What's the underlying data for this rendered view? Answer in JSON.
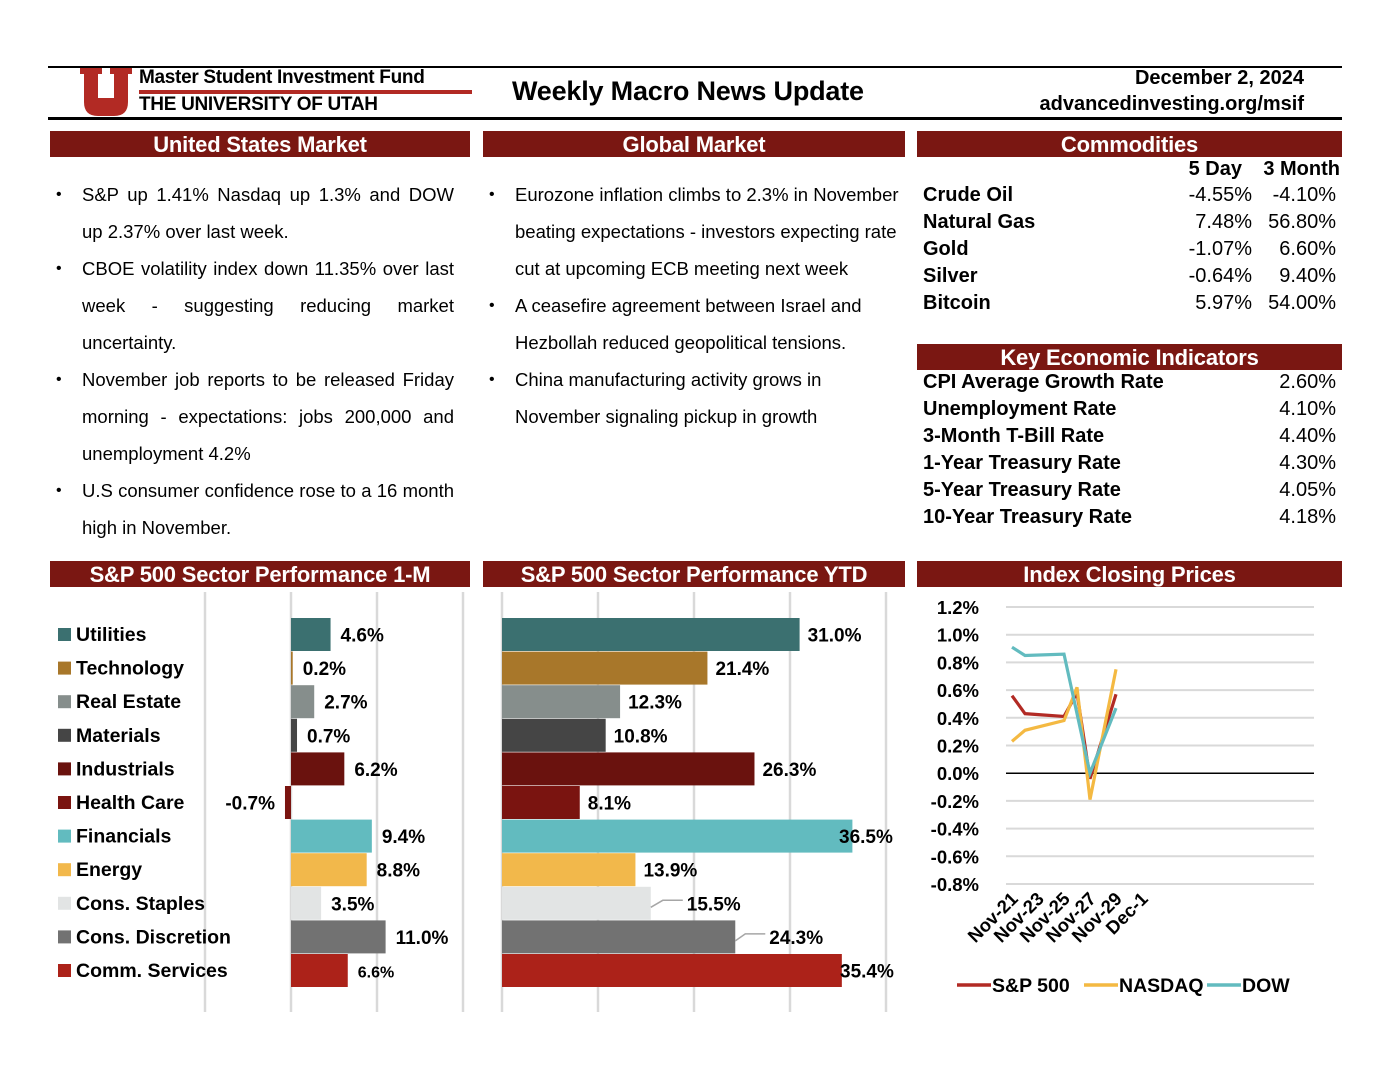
{
  "header": {
    "fund_name": "Master Student Investment Fund",
    "university": "THE UNIVERSITY OF UTAH",
    "title": "Weekly Macro News Update",
    "date": "December 2, 2024",
    "url": "advancedinvesting.org/msif",
    "logo_icon": "university-of-utah-u-logo",
    "brand_color": "#b22a24",
    "section_color": "#7a1712"
  },
  "us_market": {
    "title": "United States Market",
    "bullets": [
      "S&P up 1.41% Nasdaq up 1.3% and DOW up 2.37% over last week.",
      "CBOE volatility index down 11.35% over last week - suggesting reducing market uncertainty.",
      "November job reports to be released Friday morning - expectations: jobs 200,000 and unemployment 4.2%",
      "U.S consumer confidence rose to a 16 month high in November."
    ]
  },
  "global_market": {
    "title": "Global Market",
    "bullets": [
      "Eurozone inflation climbs to 2.3% in November beating expectations - investors expecting rate cut at upcoming ECB meeting next week",
      "A ceasefire agreement between Israel and Hezbollah reduced geopolitical tensions.",
      "China manufacturing activity grows in November signaling pickup in growth"
    ]
  },
  "commodities": {
    "title": "Commodities",
    "columns": [
      "5 Day",
      "3 Month"
    ],
    "rows": [
      {
        "name": "Crude Oil",
        "five_day": "-4.55%",
        "three_month": "-4.10%"
      },
      {
        "name": "Natural Gas",
        "five_day": "7.48%",
        "three_month": "56.80%"
      },
      {
        "name": "Gold",
        "five_day": "-1.07%",
        "three_month": "6.60%"
      },
      {
        "name": "Silver",
        "five_day": "-0.64%",
        "three_month": "9.40%"
      },
      {
        "name": "Bitcoin",
        "five_day": "5.97%",
        "three_month": "54.00%"
      }
    ]
  },
  "indicators": {
    "title": "Key Economic Indicators",
    "rows": [
      {
        "name": "CPI Average Growth Rate",
        "value": "2.60%"
      },
      {
        "name": "Unemployment Rate",
        "value": "4.10%"
      },
      {
        "name": "3-Month T-Bill Rate",
        "value": "4.40%"
      },
      {
        "name": "1-Year Treasury Rate",
        "value": "4.30%"
      },
      {
        "name": "5-Year Treasury Rate",
        "value": "4.05%"
      },
      {
        "name": "10-Year Treasury Rate",
        "value": "4.18%"
      }
    ]
  },
  "chart_data": [
    {
      "id": "sector_1m",
      "type": "bar",
      "orientation": "horizontal",
      "title": "S&P 500 Sector Performance 1-M",
      "categories": [
        "Utilities",
        "Technology",
        "Real Estate",
        "Materials",
        "Industrials",
        "Health Care",
        "Financials",
        "Energy",
        "Cons. Staples",
        "Cons. Discretion",
        "Comm. Services"
      ],
      "values": [
        4.6,
        0.2,
        2.7,
        0.7,
        6.2,
        -0.7,
        9.4,
        8.8,
        3.5,
        11.0,
        6.6
      ],
      "labels": [
        "4.6%",
        "0.2%",
        "2.7%",
        "0.7%",
        "6.2%",
        "-0.7%",
        "9.4%",
        "8.8%",
        "3.5%",
        "11.0%",
        "6.6%"
      ],
      "colors": [
        "#3b7070",
        "#a8772a",
        "#868e8c",
        "#454545",
        "#6a120e",
        "#7a1410",
        "#62bbbf",
        "#f2b84b",
        "#e2e4e4",
        "#727272",
        "#ac2219"
      ],
      "xlim": [
        -10,
        20
      ],
      "gridlines": [
        -10,
        0,
        10,
        20
      ],
      "grid": true,
      "legend": "left"
    },
    {
      "id": "sector_ytd",
      "type": "bar",
      "orientation": "horizontal",
      "title": "S&P 500 Sector Performance YTD",
      "categories": [
        "Utilities",
        "Technology",
        "Real Estate",
        "Materials",
        "Industrials",
        "Health Care",
        "Financials",
        "Energy",
        "Cons. Staples",
        "Cons. Discretion",
        "Comm. Services"
      ],
      "values": [
        31.0,
        21.4,
        12.3,
        10.8,
        26.3,
        8.1,
        36.5,
        13.9,
        15.5,
        24.3,
        35.4
      ],
      "labels": [
        "31.0%",
        "21.4%",
        "12.3%",
        "10.8%",
        "26.3%",
        "8.1%",
        "36.5%",
        "13.9%",
        "15.5%",
        "24.3%",
        "35.4%"
      ],
      "colors": [
        "#3b7070",
        "#a8772a",
        "#868e8c",
        "#454545",
        "#6a120e",
        "#7a1410",
        "#62bbbf",
        "#f2b84b",
        "#e2e4e4",
        "#727272",
        "#ac2219"
      ],
      "xlim": [
        0,
        40
      ],
      "gridlines": [
        0,
        10,
        20,
        30,
        40
      ],
      "grid": true
    },
    {
      "id": "index_closing",
      "type": "line",
      "title": "Index Closing Prices",
      "x": [
        "Nov-21",
        "Nov-22",
        "Nov-25",
        "Nov-26",
        "Nov-27",
        "Nov-29"
      ],
      "x_day_offsets": [
        0,
        1,
        4,
        5,
        6,
        8
      ],
      "x_ticks": [
        "Nov-21",
        "Nov-23",
        "Nov-25",
        "Nov-27",
        "Nov-29",
        "Dec-1"
      ],
      "x_tick_offsets": [
        0,
        2,
        4,
        6,
        8,
        10
      ],
      "series": [
        {
          "name": "S&P 500",
          "color": "#b22a24",
          "values": [
            0.56,
            0.43,
            0.41,
            0.58,
            -0.04,
            0.57
          ]
        },
        {
          "name": "NASDAQ",
          "color": "#f4b942",
          "values": [
            0.23,
            0.31,
            0.38,
            0.62,
            -0.19,
            0.75
          ]
        },
        {
          "name": "DOW",
          "color": "#62bbbf",
          "values": [
            0.91,
            0.85,
            0.86,
            null,
            0.0,
            0.47
          ]
        }
      ],
      "y_ticks": [
        "1.2%",
        "1.0%",
        "0.8%",
        "0.6%",
        "0.4%",
        "0.2%",
        "0.0%",
        "-0.2%",
        "-0.4%",
        "-0.6%",
        "-0.8%"
      ],
      "y_tick_values": [
        1.2,
        1.0,
        0.8,
        0.6,
        0.4,
        0.2,
        0.0,
        -0.2,
        -0.4,
        -0.6,
        -0.8
      ],
      "ylim": [
        -0.8,
        1.2
      ],
      "ylabel": "",
      "xlabel": "",
      "grid": true,
      "legend": "bottom"
    }
  ]
}
